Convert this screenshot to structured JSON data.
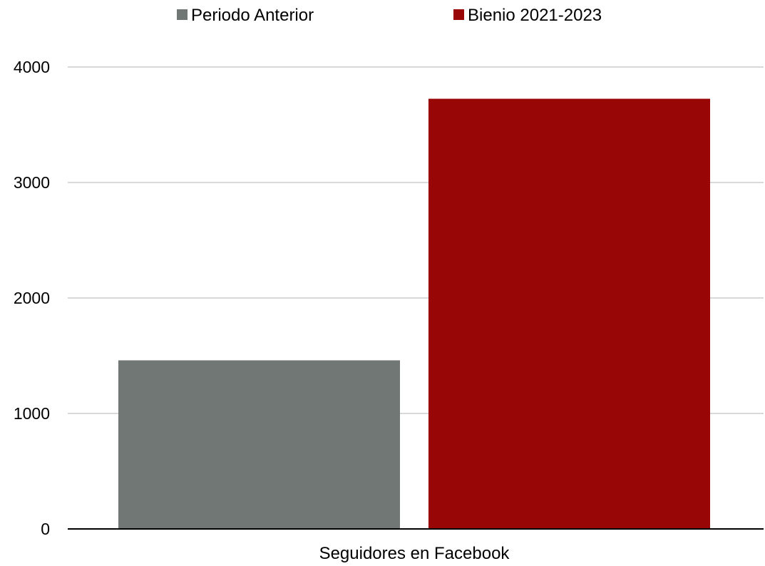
{
  "chart_data": {
    "type": "bar",
    "categories": [
      "Seguidores en Facebook"
    ],
    "series": [
      {
        "name": "Periodo Anterior",
        "values": [
          1460
        ],
        "color": "#717774"
      },
      {
        "name": "Bienio 2021-2023",
        "values": [
          3725
        ],
        "color": "#990606"
      }
    ],
    "ylim": [
      0,
      4000
    ],
    "yticks": [
      0,
      1000,
      2000,
      3000,
      4000
    ],
    "grid": true,
    "legend": "top-center"
  }
}
